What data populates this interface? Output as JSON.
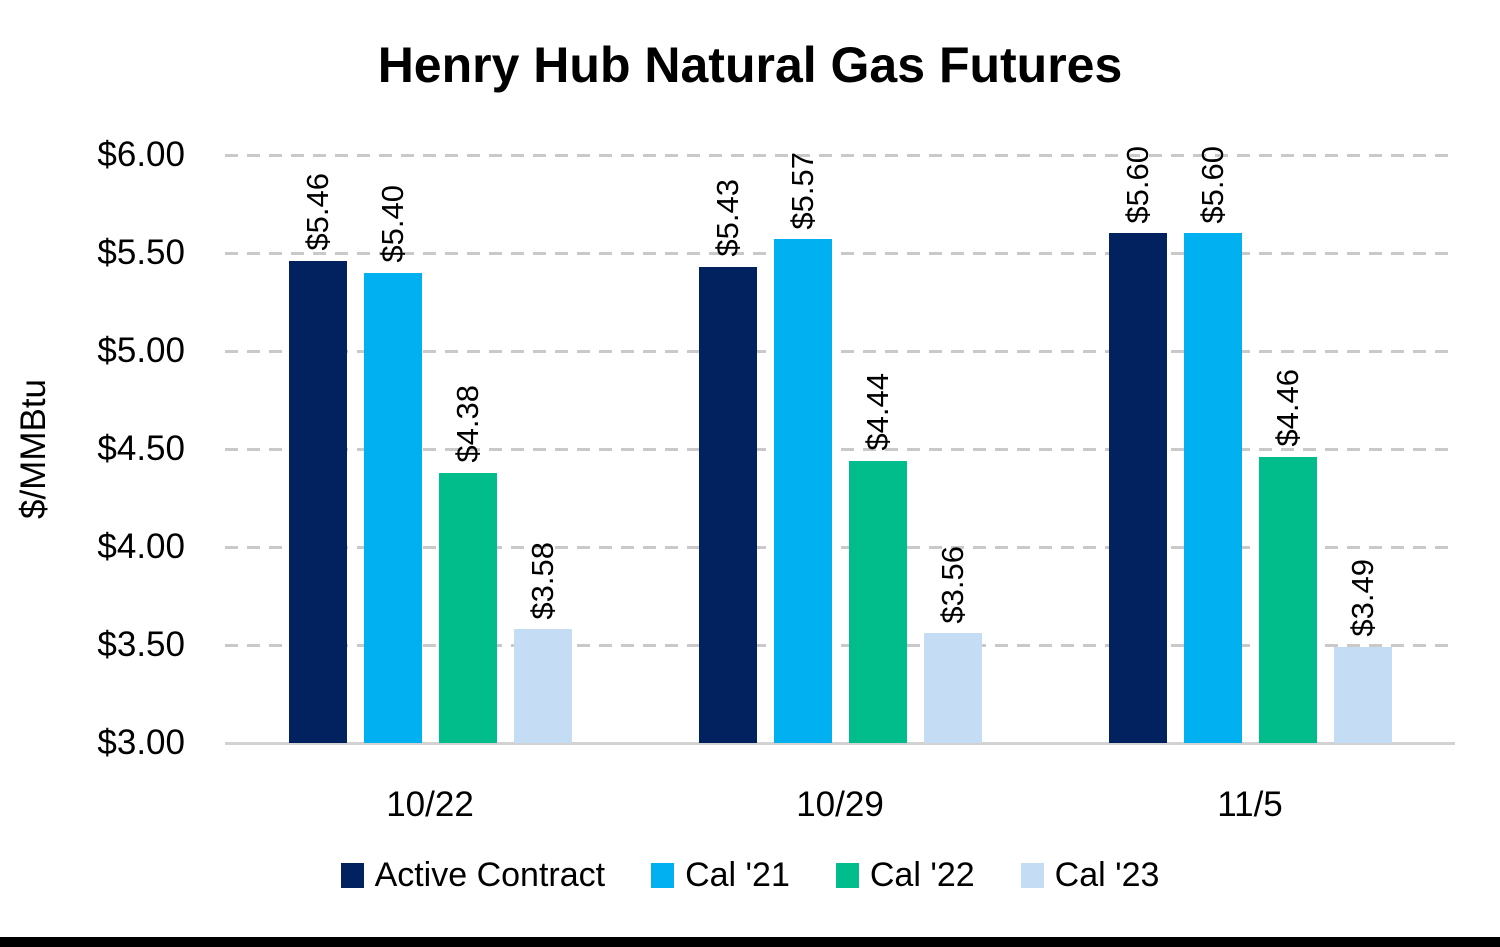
{
  "chart_data": {
    "type": "bar",
    "title": "Henry Hub Natural Gas Futures",
    "xlabel": "",
    "ylabel": "$/MMBtu",
    "categories": [
      "10/22",
      "10/29",
      "11/5"
    ],
    "series": [
      {
        "name": "Active Contract",
        "color": "#02215f",
        "values": [
          5.46,
          5.43,
          5.6
        ],
        "labels": [
          "$5.46",
          "$5.43",
          "$5.60"
        ]
      },
      {
        "name": "Cal '21",
        "color": "#00b0f0",
        "values": [
          5.4,
          5.57,
          5.6
        ],
        "labels": [
          "$5.40",
          "$5.57",
          "$5.60"
        ]
      },
      {
        "name": "Cal '22",
        "color": "#00bd8b",
        "values": [
          4.38,
          4.44,
          4.46
        ],
        "labels": [
          "$4.38",
          "$4.44",
          "$4.46"
        ]
      },
      {
        "name": "Cal '23",
        "color": "#c5ddf4",
        "values": [
          3.58,
          3.56,
          3.49
        ],
        "labels": [
          "$3.58",
          "$3.56",
          "$3.49"
        ]
      }
    ],
    "ylim": [
      3.0,
      6.0
    ],
    "ytick_step": 0.5,
    "ytick_labels": [
      "$3.00",
      "$3.50",
      "$4.00",
      "$4.50",
      "$5.00",
      "$5.50",
      "$6.00"
    ],
    "grid": "horizontal-dashed",
    "legend_position": "bottom",
    "bar_label_rotation_deg": 90,
    "colors": {
      "gridline": "#c9c9c9",
      "axis_line": "#d2d2d2",
      "text": "#000000",
      "background": "#ffffff"
    }
  }
}
